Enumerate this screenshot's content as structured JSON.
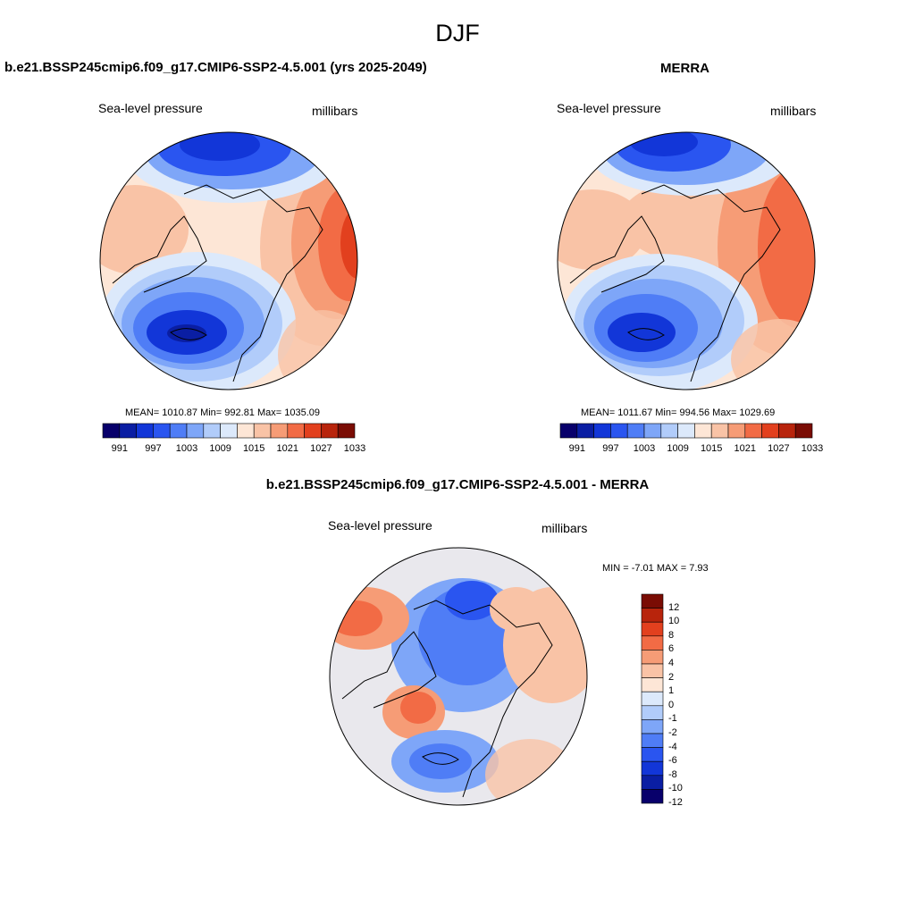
{
  "figure_title": "DJF",
  "panels": [
    {
      "title": "b.e21.BSSP245cmip6.f09_g17.CMIP6-SSP2-4.5.001 (yrs 2025-2049)",
      "left_label": "Sea-level pressure",
      "right_label": "millibars",
      "stats": "MEAN= 1010.87   Min= 992.81   Max= 1035.09",
      "colorbar_ticks": [
        "991",
        "997",
        "1003",
        "1009",
        "1015",
        "1021",
        "1027",
        "1033"
      ]
    },
    {
      "title": "MERRA",
      "left_label": "Sea-level pressure",
      "right_label": "millibars",
      "stats": "MEAN= 1011.67   Min= 994.56   Max= 1029.69",
      "colorbar_ticks": [
        "991",
        "997",
        "1003",
        "1009",
        "1015",
        "1021",
        "1027",
        "1033"
      ]
    },
    {
      "title": "b.e21.BSSP245cmip6.f09_g17.CMIP6-SSP2-4.5.001 - MERRA",
      "left_label": "Sea-level pressure",
      "right_label": "millibars",
      "stats": "MIN =  -7.01 MAX =   7.93",
      "colorbar_ticks": [
        "12",
        "10",
        "8",
        "6",
        "4",
        "2",
        "1",
        "0",
        "-1",
        "-2",
        "-4",
        "-6",
        "-8",
        "-10",
        "-12"
      ]
    }
  ],
  "colors": {
    "abs_scale": [
      "#08006b",
      "#0a1ea3",
      "#1236d8",
      "#2a55f0",
      "#4f7df6",
      "#7ea6f8",
      "#b1ccfa",
      "#dce9fb",
      "#fde6d6",
      "#f9c3a6",
      "#f69c76",
      "#f26b45",
      "#e2401e",
      "#b8240c",
      "#7a0c04"
    ],
    "diff_scale": [
      "#08006b",
      "#0a1ea3",
      "#1236d8",
      "#2a55f0",
      "#4f7df6",
      "#7ea6f8",
      "#b1ccfa",
      "#dce9fb",
      "#fde6d6",
      "#f9c3a6",
      "#f69c76",
      "#f26b45",
      "#e2401e",
      "#b8240c",
      "#7a0c04"
    ]
  }
}
